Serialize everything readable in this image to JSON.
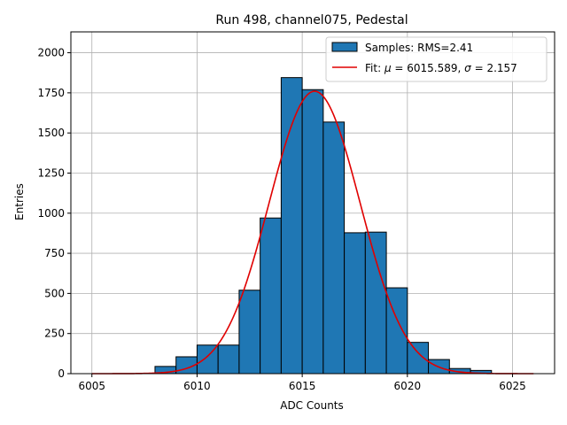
{
  "chart_data": {
    "type": "bar",
    "title": "Run 498, channel075, Pedestal",
    "xlabel": "ADC Counts",
    "ylabel": "Entries",
    "xlim": [
      6004,
      6027
    ],
    "ylim": [
      0,
      2130
    ],
    "x_ticks": [
      6005,
      6010,
      6015,
      6020,
      6025
    ],
    "y_ticks": [
      0,
      250,
      500,
      750,
      1000,
      1250,
      1500,
      1750,
      2000
    ],
    "grid": true,
    "legend_position": "top-right",
    "histogram": {
      "name": "Samples: RMS=2.41",
      "color": "#1f77b4",
      "edgecolor": "#000000",
      "bins": [
        {
          "left": 6008,
          "right": 6009,
          "value": 45
        },
        {
          "left": 6009,
          "right": 6010,
          "value": 105
        },
        {
          "left": 6010,
          "right": 6011,
          "value": 178
        },
        {
          "left": 6011,
          "right": 6012,
          "value": 178
        },
        {
          "left": 6012,
          "right": 6013,
          "value": 520
        },
        {
          "left": 6013,
          "right": 6014,
          "value": 970
        },
        {
          "left": 6014,
          "right": 6015,
          "value": 1845
        },
        {
          "left": 6015,
          "right": 6016,
          "value": 1770
        },
        {
          "left": 6016,
          "right": 6017,
          "value": 1568
        },
        {
          "left": 6017,
          "right": 6018,
          "value": 878
        },
        {
          "left": 6018,
          "right": 6019,
          "value": 882
        },
        {
          "left": 6019,
          "right": 6020,
          "value": 535
        },
        {
          "left": 6020,
          "right": 6021,
          "value": 195
        },
        {
          "left": 6021,
          "right": 6022,
          "value": 88
        },
        {
          "left": 6022,
          "right": 6023,
          "value": 32
        },
        {
          "left": 6023,
          "right": 6024,
          "value": 20
        }
      ]
    },
    "fit": {
      "name": "Fit: μ = 6015.589, σ = 2.157",
      "legend_prefix": "Fit: ",
      "mu_symbol": "μ",
      "mu_text": " = 6015.589, ",
      "sigma_symbol": "σ",
      "sigma_text": " = 2.157",
      "color": "#e00000",
      "mu": 6015.589,
      "sigma": 2.157,
      "amplitude": 1760,
      "x_range": [
        6005,
        6026
      ]
    }
  }
}
